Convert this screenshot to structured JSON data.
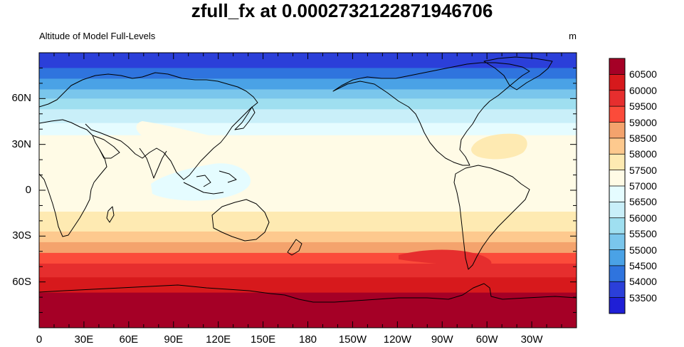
{
  "chart_data": {
    "type": "heatmap",
    "title": "zfull_fx at 0.0002732122871946706",
    "subtitle": "Altitude of Model Full-Levels",
    "units": "m",
    "x_ticks": [
      "0",
      "30E",
      "60E",
      "90E",
      "120E",
      "150E",
      "180",
      "150W",
      "120W",
      "90W",
      "60W",
      "30W"
    ],
    "y_ticks": [
      "60N",
      "30N",
      "0",
      "30S",
      "60S"
    ],
    "legend_levels": [
      "60500",
      "60000",
      "59500",
      "59000",
      "58500",
      "58000",
      "57500",
      "57000",
      "56500",
      "56000",
      "55500",
      "55000",
      "54500",
      "54000",
      "53500"
    ],
    "bin_colors": [
      "#a50026",
      "#d7191c",
      "#e62e2e",
      "#fb4b3a",
      "#f4a36d",
      "#fdc98e",
      "#feeab2",
      "#fffbe6",
      "#e5fcff",
      "#c9eff9",
      "#9fdff0",
      "#7ac6ec",
      "#4aa2e6",
      "#2f74de",
      "#2b3fd9",
      "#1f1fd6"
    ],
    "zonal_bands": [
      {
        "lat_min": 80,
        "lat_max": 90,
        "bin": 14
      },
      {
        "lat_min": 73,
        "lat_max": 80,
        "bin": 13
      },
      {
        "lat_min": 66,
        "lat_max": 73,
        "bin": 12
      },
      {
        "lat_min": 60,
        "lat_max": 66,
        "bin": 11
      },
      {
        "lat_min": 53,
        "lat_max": 60,
        "bin": 10
      },
      {
        "lat_min": 44,
        "lat_max": 53,
        "bin": 9
      },
      {
        "lat_min": 36,
        "lat_max": 44,
        "bin": 8
      },
      {
        "lat_min": -14,
        "lat_max": 36,
        "bin": 7
      },
      {
        "lat_min": -27,
        "lat_max": -14,
        "bin": 6
      },
      {
        "lat_min": -34,
        "lat_max": -27,
        "bin": 5
      },
      {
        "lat_min": -41,
        "lat_max": -34,
        "bin": 4
      },
      {
        "lat_min": -48,
        "lat_max": -41,
        "bin": 3
      },
      {
        "lat_min": -57,
        "lat_max": -48,
        "bin": 2
      },
      {
        "lat_min": -67,
        "lat_max": -57,
        "bin": 1
      },
      {
        "lat_min": -90,
        "lat_max": -67,
        "bin": 0
      }
    ]
  }
}
